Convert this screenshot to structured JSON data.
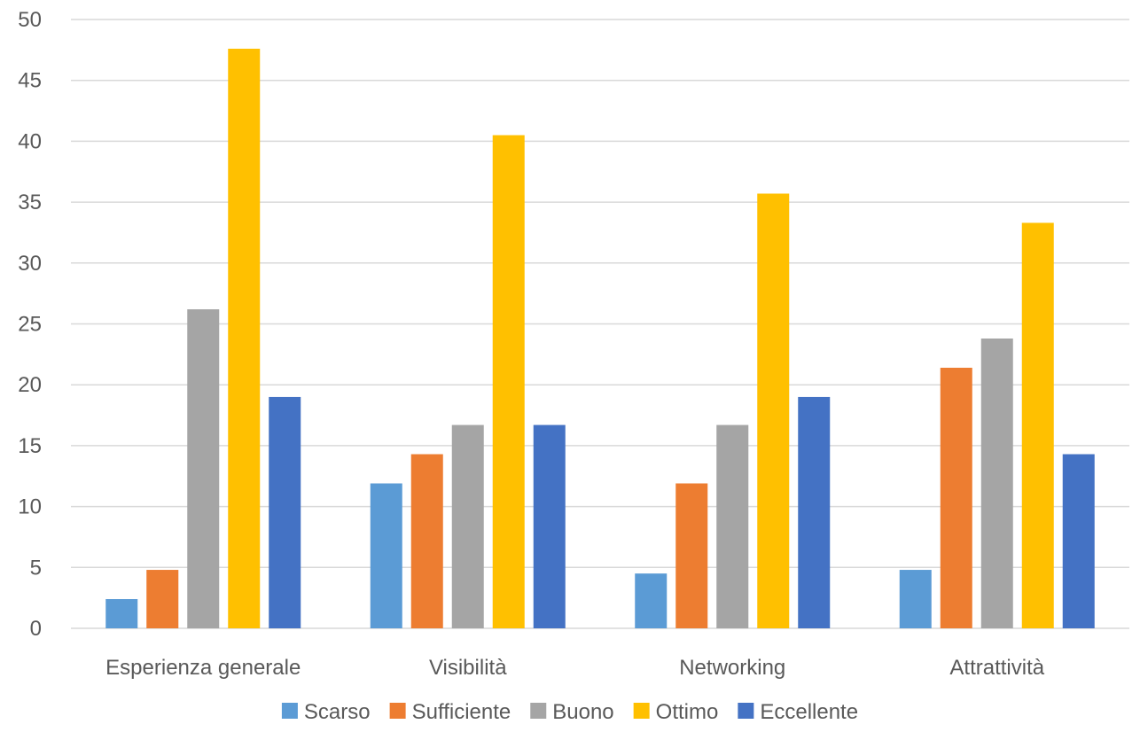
{
  "chart_data": {
    "type": "bar",
    "categories": [
      "Esperienza generale",
      "Visibilità",
      "Networking",
      "Attrattività"
    ],
    "series": [
      {
        "name": "Scarso",
        "color": "#5B9BD5",
        "values": [
          2.4,
          11.9,
          4.5,
          4.8
        ]
      },
      {
        "name": "Sufficiente",
        "color": "#ED7D31",
        "values": [
          4.8,
          14.3,
          11.9,
          21.4
        ]
      },
      {
        "name": "Buono",
        "color": "#A5A5A5",
        "values": [
          26.2,
          16.7,
          16.7,
          23.8
        ]
      },
      {
        "name": "Ottimo",
        "color": "#FFC000",
        "values": [
          47.6,
          40.5,
          35.7,
          33.3
        ]
      },
      {
        "name": "Eccellente",
        "color": "#4472C4",
        "values": [
          19.0,
          16.7,
          19.0,
          14.3
        ]
      }
    ],
    "ylim": [
      0,
      50
    ],
    "yticks": [
      0,
      5,
      10,
      15,
      20,
      25,
      30,
      35,
      40,
      45,
      50
    ],
    "grid": true,
    "legend": "bottom",
    "title": "",
    "xlabel": "",
    "ylabel": ""
  }
}
